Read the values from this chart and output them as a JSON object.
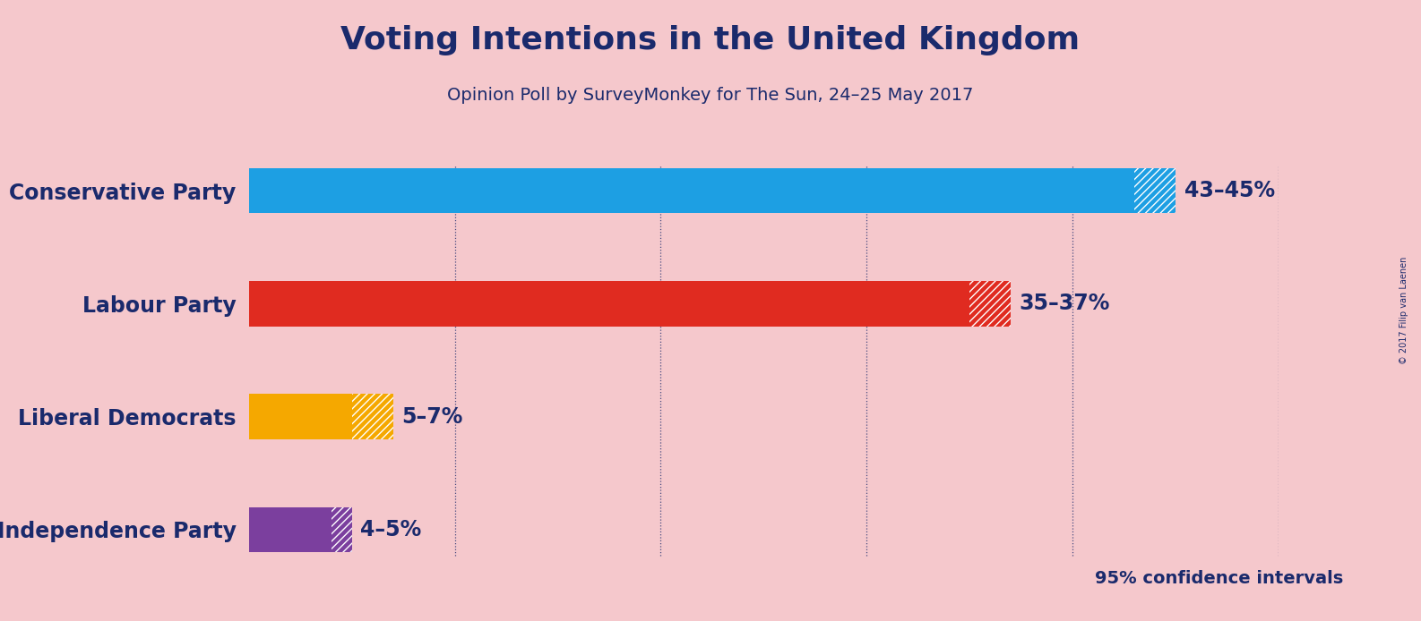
{
  "title": "Voting Intentions in the United Kingdom",
  "subtitle": "Opinion Poll by SurveyMonkey for The Sun, 24–25 May 2017",
  "copyright": "© 2017 Filip van Laenen",
  "background_color": "#f5c8cc",
  "parties": [
    "Conservative Party",
    "Labour Party",
    "Liberal Democrats",
    "UK Independence Party"
  ],
  "lower_values": [
    43,
    35,
    5,
    4
  ],
  "upper_values": [
    45,
    37,
    7,
    5
  ],
  "colors": [
    "#1d9fe3",
    "#e02b20",
    "#f5a800",
    "#7b3f9e"
  ],
  "labels": [
    "43–45%",
    "35–37%",
    "5–7%",
    "4–5%"
  ],
  "confidence_note": "95% confidence intervals",
  "title_color": "#1a2a6c",
  "subtitle_color": "#1a2a6c",
  "label_color": "#1a2a6c",
  "party_label_color": "#1a2a6c",
  "confidence_color": "#1a2a6c",
  "xlim": [
    0,
    50
  ],
  "grid_ticks": [
    10,
    20,
    30,
    40,
    50
  ],
  "bar_height": 0.6,
  "bar_spacing": 1.5,
  "title_fontsize": 26,
  "subtitle_fontsize": 14,
  "label_fontsize": 17,
  "party_fontsize": 17
}
